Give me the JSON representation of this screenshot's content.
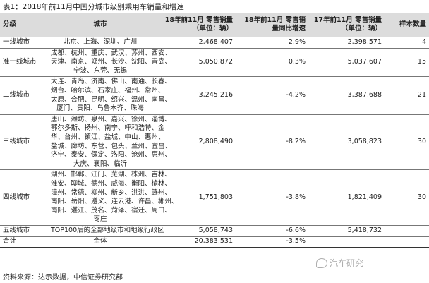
{
  "title": "表1：2018年前11月中国分城市级别乘用车销量和增速",
  "headers": {
    "tier": "分级",
    "cities": "城市",
    "sales18": "18年前11月 零售销量（单位：辆）",
    "yoy": "18年前11月 零售销量同比增速",
    "sales17": "17年前11月 零售销量（单位：辆）",
    "n": "样本数量"
  },
  "rows": [
    {
      "tier": "一线城市",
      "cities": [
        "北京、上海、深圳、广州"
      ],
      "sales18": "2,468,407",
      "yoy": "2.9%",
      "sales17": "2,398,571",
      "n": "4"
    },
    {
      "tier": "准一线城市",
      "cities": [
        "成都、杭州、重庆、武汉、苏州、西安、",
        "天津、南京、郑州、长沙、沈阳、青岛、",
        "宁波、东莞、无锡"
      ],
      "sales18": "5,050,872",
      "yoy": "0.3%",
      "sales17": "5,037,607",
      "n": "15"
    },
    {
      "tier": "二线城市",
      "cities": [
        "大连、青岛、济南、佛山、南通、长春、",
        "烟台、哈尔滨、石家庄、福州、常州、",
        "太原、合肥、昆明、绍兴、温州、南昌、",
        "厦门、贵阳、乌鲁木齐、珠海"
      ],
      "sales18": "3,245,216",
      "yoy": "-4.2%",
      "sales17": "3,387,688",
      "n": "21"
    },
    {
      "tier": "三线城市",
      "cities": [
        "唐山、潍坊、泉州、嘉兴、徐州、淄博、",
        "鄂尔多斯、扬州、南宁、呼和浩特、金",
        "华、台州、镇江、盐城、中山、惠州、",
        "盐城、廊坊、东营、包头、兰州、宜昌、",
        "济宁、泰安、保定、洛阳、沧州、惠州、",
        "大庆、襄阳、临沂"
      ],
      "sales18": "2,808,490",
      "yoy": "-8.2%",
      "sales17": "3,058,823",
      "n": "30"
    },
    {
      "tier": "四线城市",
      "cities": [
        "湖州、邯郸、江门、芜湖、株洲、吉林、",
        "淮安、聊城、德州、威海、衡阳、榆林、",
        "漳州、常德、柳州、新乡、洪洪、赣州、",
        "南阳、岳阳、遵义、连云港、许昌、郴州、",
        "南阳、湛江、茂名、菏泽、宿迁、周口、",
        "枣庄"
      ],
      "sales18": "1,751,803",
      "yoy": "-3.8%",
      "sales17": "1,821,409",
      "n": "30"
    },
    {
      "tier": "五线城市",
      "cities": [
        "TOP100后的全部地级市和地级行政区"
      ],
      "sales18": "5,058,743",
      "yoy": "-6.6%",
      "sales17": "5,418,732",
      "n": ""
    }
  ],
  "total": {
    "label": "合计",
    "cities": "全体",
    "sales18": "20,383,531",
    "yoy": "-3.5%",
    "sales17": "",
    "n": ""
  },
  "source": "资料来源：达示数据，中信证券研究部",
  "watermark": "汽车研究"
}
